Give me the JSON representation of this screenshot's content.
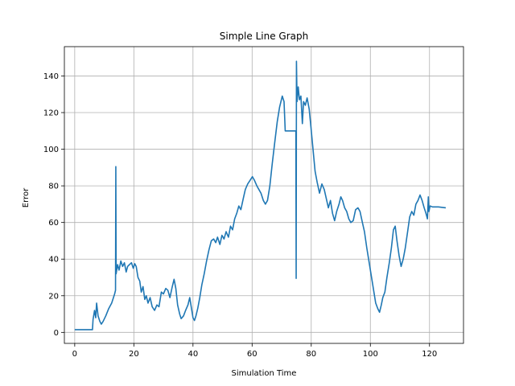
{
  "chart_data": {
    "type": "line",
    "title": "Simple Line Graph",
    "xlabel": "Simulation Time",
    "ylabel": "Error",
    "xlim": [
      -3.5,
      131.5
    ],
    "ylim": [
      -6,
      156
    ],
    "xticks": [
      0,
      20,
      40,
      60,
      80,
      100,
      120
    ],
    "yticks": [
      0,
      20,
      40,
      60,
      80,
      100,
      120,
      140
    ],
    "grid": true,
    "line_color": "#1f77b4",
    "series": [
      {
        "points": [
          [
            0,
            1.5
          ],
          [
            6,
            1.5
          ],
          [
            6.2,
            7
          ],
          [
            6.7,
            12
          ],
          [
            7.1,
            8
          ],
          [
            7.4,
            16
          ],
          [
            7.9,
            9
          ],
          [
            8.5,
            6
          ],
          [
            9,
            4.5
          ],
          [
            9.6,
            6
          ],
          [
            10.5,
            9
          ],
          [
            11.5,
            13
          ],
          [
            12.5,
            16
          ],
          [
            13.5,
            21
          ],
          [
            13.8,
            23
          ],
          [
            13.9,
            90.5
          ],
          [
            14,
            32
          ],
          [
            14.5,
            37
          ],
          [
            15,
            34
          ],
          [
            15.6,
            39
          ],
          [
            16.2,
            36
          ],
          [
            16.8,
            38
          ],
          [
            17.4,
            33
          ],
          [
            17.9,
            36
          ],
          [
            18.5,
            37
          ],
          [
            19.2,
            38
          ],
          [
            19.8,
            35
          ],
          [
            20.3,
            37.5
          ],
          [
            20.8,
            36
          ],
          [
            21.4,
            30
          ],
          [
            22,
            28
          ],
          [
            22.5,
            22
          ],
          [
            23.1,
            25
          ],
          [
            23.7,
            18
          ],
          [
            24.2,
            20
          ],
          [
            24.8,
            16
          ],
          [
            25.5,
            19
          ],
          [
            26.2,
            14
          ],
          [
            27,
            12
          ],
          [
            27.8,
            15
          ],
          [
            28.5,
            14
          ],
          [
            29.3,
            22
          ],
          [
            30,
            21
          ],
          [
            30.8,
            24
          ],
          [
            31.5,
            23
          ],
          [
            32.2,
            19
          ],
          [
            33,
            25
          ],
          [
            33.6,
            29
          ],
          [
            34.2,
            24
          ],
          [
            34.8,
            15
          ],
          [
            35.5,
            10
          ],
          [
            36,
            7.5
          ],
          [
            36.8,
            9
          ],
          [
            37.5,
            12
          ],
          [
            38.3,
            15
          ],
          [
            38.9,
            19
          ],
          [
            39.4,
            14
          ],
          [
            40,
            8
          ],
          [
            40.5,
            6.5
          ],
          [
            41,
            9
          ],
          [
            41.6,
            13
          ],
          [
            42.3,
            19
          ],
          [
            43,
            26
          ],
          [
            43.8,
            32
          ],
          [
            44.6,
            39
          ],
          [
            45.4,
            45
          ],
          [
            46.2,
            50
          ],
          [
            47,
            51
          ],
          [
            47.7,
            49
          ],
          [
            48.3,
            52
          ],
          [
            49.1,
            48
          ],
          [
            49.8,
            53
          ],
          [
            50.5,
            51
          ],
          [
            51.2,
            55
          ],
          [
            52,
            52
          ],
          [
            52.7,
            58
          ],
          [
            53.4,
            56
          ],
          [
            54.1,
            62
          ],
          [
            54.8,
            65
          ],
          [
            55.5,
            69
          ],
          [
            56.2,
            67
          ],
          [
            57,
            73
          ],
          [
            57.7,
            78
          ],
          [
            58.5,
            81
          ],
          [
            59.3,
            83
          ],
          [
            60.1,
            85
          ],
          [
            60.8,
            83
          ],
          [
            61.6,
            80
          ],
          [
            62.3,
            78
          ],
          [
            63,
            76
          ],
          [
            63.8,
            72
          ],
          [
            64.5,
            70
          ],
          [
            65.2,
            72
          ],
          [
            66,
            80
          ],
          [
            66.8,
            92
          ],
          [
            67.6,
            103
          ],
          [
            68.5,
            115
          ],
          [
            69.3,
            123
          ],
          [
            70.2,
            129
          ],
          [
            70.8,
            126
          ],
          [
            71.2,
            110
          ],
          [
            74.8,
            110
          ],
          [
            74.9,
            29.5
          ],
          [
            75,
            148
          ],
          [
            75.2,
            126
          ],
          [
            75.6,
            134
          ],
          [
            76,
            127
          ],
          [
            76.5,
            129
          ],
          [
            77,
            114
          ],
          [
            77.4,
            126
          ],
          [
            78,
            124
          ],
          [
            78.6,
            128
          ],
          [
            79.3,
            122
          ],
          [
            79.9,
            112
          ],
          [
            80.6,
            100
          ],
          [
            81.3,
            88
          ],
          [
            82,
            82
          ],
          [
            82.8,
            76
          ],
          [
            83.6,
            81
          ],
          [
            84.4,
            78
          ],
          [
            85.1,
            73
          ],
          [
            85.8,
            68
          ],
          [
            86.5,
            72
          ],
          [
            87.2,
            65
          ],
          [
            87.9,
            61
          ],
          [
            88.6,
            66
          ],
          [
            89.4,
            70
          ],
          [
            90,
            74
          ],
          [
            90.6,
            72
          ],
          [
            91.3,
            68
          ],
          [
            92,
            66
          ],
          [
            92.7,
            62
          ],
          [
            93.4,
            60
          ],
          [
            94.2,
            61
          ],
          [
            95,
            67
          ],
          [
            95.8,
            68
          ],
          [
            96.5,
            66
          ],
          [
            97.3,
            60
          ],
          [
            98,
            55
          ],
          [
            98.8,
            46
          ],
          [
            99.6,
            38
          ],
          [
            100.4,
            30
          ],
          [
            101.2,
            22
          ],
          [
            101.8,
            16
          ],
          [
            102.5,
            13
          ],
          [
            103.1,
            11
          ],
          [
            103.7,
            15
          ],
          [
            104.2,
            19
          ],
          [
            104.9,
            22
          ],
          [
            105.6,
            30
          ],
          [
            106.4,
            38
          ],
          [
            107.1,
            46
          ],
          [
            107.8,
            56
          ],
          [
            108.4,
            58
          ],
          [
            109,
            50
          ],
          [
            109.7,
            42
          ],
          [
            110.4,
            36
          ],
          [
            111.1,
            40
          ],
          [
            111.8,
            46
          ],
          [
            112.6,
            55
          ],
          [
            113.3,
            63
          ],
          [
            114,
            66
          ],
          [
            114.7,
            64
          ],
          [
            115.4,
            70
          ],
          [
            116.1,
            72
          ],
          [
            116.8,
            75
          ],
          [
            117.5,
            72
          ],
          [
            118.2,
            68
          ],
          [
            118.8,
            65
          ],
          [
            119.3,
            62
          ],
          [
            119.6,
            74
          ],
          [
            119.8,
            66
          ],
          [
            120.2,
            69
          ],
          [
            121,
            68.5
          ],
          [
            123,
            68.5
          ],
          [
            125.5,
            68
          ]
        ]
      }
    ]
  }
}
